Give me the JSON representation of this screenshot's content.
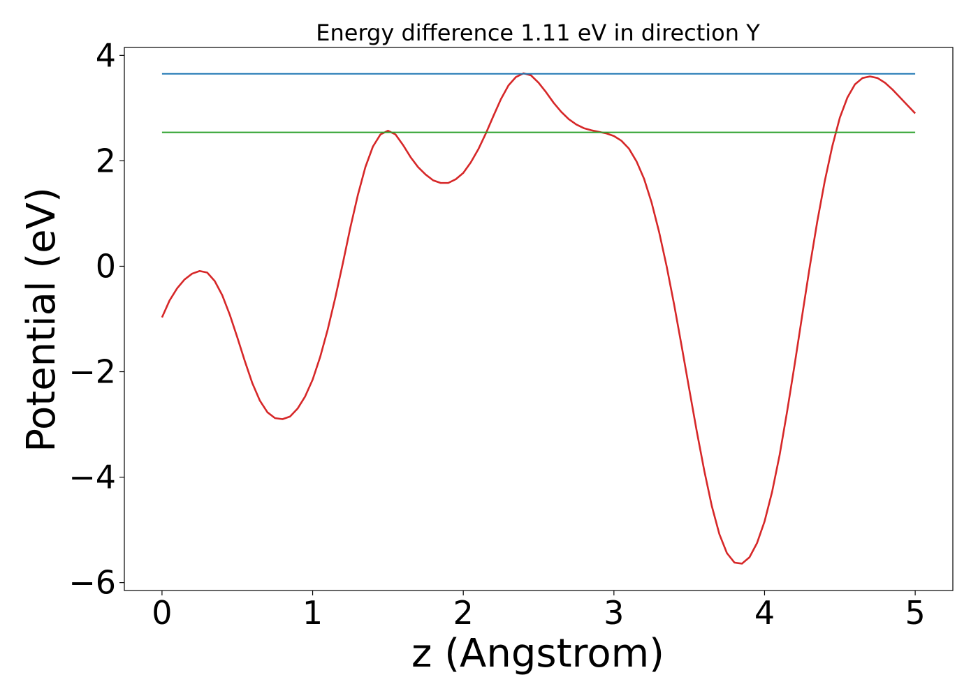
{
  "chart_data": {
    "type": "line",
    "title": "Energy difference 1.11 eV in direction Y",
    "xlabel": "z (Angstrom)",
    "ylabel": "Potential (eV)",
    "xlim": [
      -0.25,
      5.25
    ],
    "ylim": [
      -6.15,
      4.15
    ],
    "xticks": [
      0,
      1,
      2,
      3,
      4,
      5
    ],
    "yticks": [
      -6,
      -4,
      -2,
      0,
      2,
      4
    ],
    "xtick_labels": [
      "0",
      "1",
      "2",
      "3",
      "4",
      "5"
    ],
    "ytick_labels": [
      "−6",
      "−4",
      "−2",
      "0",
      "2",
      "4"
    ],
    "grid": false,
    "legend": "none",
    "series": [
      {
        "color": "#d62728",
        "kind": "curve",
        "x": [
          0,
          0.05,
          0.1,
          0.15,
          0.2,
          0.25,
          0.3,
          0.35,
          0.4,
          0.45,
          0.5,
          0.55,
          0.6,
          0.65,
          0.7,
          0.75,
          0.8,
          0.85,
          0.9,
          0.95,
          1.0,
          1.05,
          1.1,
          1.15,
          1.2,
          1.25,
          1.3,
          1.35,
          1.4,
          1.45,
          1.5,
          1.55,
          1.6,
          1.65,
          1.7,
          1.75,
          1.8,
          1.85,
          1.9,
          1.95,
          2.0,
          2.05,
          2.1,
          2.15,
          2.2,
          2.25,
          2.3,
          2.35,
          2.4,
          2.45,
          2.5,
          2.55,
          2.6,
          2.65,
          2.7,
          2.75,
          2.8,
          2.85,
          2.9,
          2.95,
          3.0,
          3.05,
          3.1,
          3.15,
          3.2,
          3.25,
          3.3,
          3.35,
          3.4,
          3.45,
          3.5,
          3.55,
          3.6,
          3.65,
          3.7,
          3.75,
          3.8,
          3.85,
          3.9,
          3.95,
          4.0,
          4.05,
          4.1,
          4.15,
          4.2,
          4.25,
          4.3,
          4.35,
          4.4,
          4.45,
          4.5,
          4.55,
          4.6,
          4.65,
          4.7,
          4.75,
          4.8,
          4.85,
          4.9,
          4.95,
          5.0
        ],
        "y": [
          -0.97,
          -0.65,
          -0.42,
          -0.25,
          -0.14,
          -0.09,
          -0.12,
          -0.28,
          -0.55,
          -0.92,
          -1.35,
          -1.8,
          -2.22,
          -2.55,
          -2.77,
          -2.88,
          -2.9,
          -2.85,
          -2.7,
          -2.47,
          -2.15,
          -1.72,
          -1.2,
          -0.6,
          0.05,
          0.73,
          1.35,
          1.88,
          2.27,
          2.5,
          2.57,
          2.5,
          2.3,
          2.07,
          1.88,
          1.74,
          1.63,
          1.58,
          1.58,
          1.65,
          1.77,
          1.97,
          2.22,
          2.52,
          2.85,
          3.17,
          3.43,
          3.59,
          3.66,
          3.62,
          3.48,
          3.3,
          3.1,
          2.93,
          2.79,
          2.69,
          2.62,
          2.58,
          2.55,
          2.52,
          2.47,
          2.38,
          2.23,
          1.99,
          1.66,
          1.21,
          0.65,
          0.0,
          -0.73,
          -1.52,
          -2.33,
          -3.13,
          -3.88,
          -4.55,
          -5.08,
          -5.44,
          -5.62,
          -5.64,
          -5.52,
          -5.25,
          -4.84,
          -4.28,
          -3.58,
          -2.75,
          -1.86,
          -0.93,
          -0.01,
          0.85,
          1.62,
          2.28,
          2.82,
          3.2,
          3.45,
          3.57,
          3.6,
          3.57,
          3.48,
          3.35,
          3.2,
          3.05,
          2.9
        ]
      },
      {
        "color": "#1f77b4",
        "kind": "hline",
        "x": [
          0,
          5
        ],
        "y": [
          3.65,
          3.65
        ]
      },
      {
        "color": "#2ca02c",
        "kind": "hline",
        "x": [
          0,
          5
        ],
        "y": [
          2.54,
          2.54
        ]
      }
    ]
  }
}
